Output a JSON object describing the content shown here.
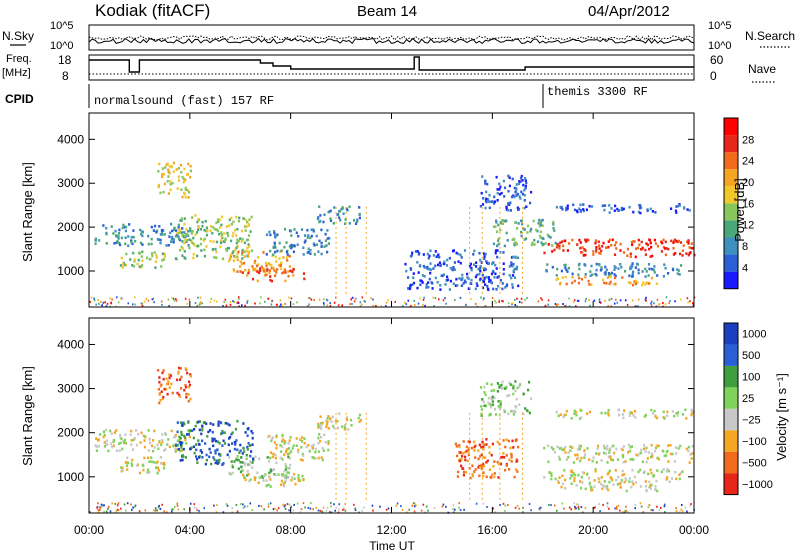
{
  "header": {
    "station": "Kodiak (fitACF)",
    "beam": "Beam 14",
    "date": "04/Apr/2012"
  },
  "side_labels": {
    "n_sky": "N.Sky",
    "freq": "Freq.",
    "freq_unit": "[MHz]",
    "cpid": "CPID",
    "n_search": "N.Search",
    "nave": "Nave"
  },
  "strip_ticks": {
    "noise_left_top": "10^5",
    "noise_left_bottom": "10^0",
    "noise_right_top": "10^5",
    "noise_right_bottom": "10^0",
    "freq_top": "18",
    "freq_bottom": "8",
    "nave_top": "60",
    "nave_bottom": "0"
  },
  "cpid_programs": [
    {
      "label": "normalsound (fast) 157 RF",
      "start_hour": 0
    },
    {
      "label": "themis 3300 RF",
      "start_hour": 18
    }
  ],
  "colors": {
    "power": [
      "#1a1aff",
      "#2a5fd6",
      "#3f8fbf",
      "#4aa77a",
      "#86c65a",
      "#f2c72a",
      "#f5a623",
      "#f26b1d",
      "#e8261a",
      "#ff0000"
    ],
    "velocity": [
      "#e8261a",
      "#f26b1d",
      "#f5a623",
      "#c8c8c8",
      "#7fd35a",
      "#3f9f3f",
      "#2a5fd6",
      "#1a3fbf"
    ],
    "line": "#000000"
  },
  "chart_data": [
    {
      "type": "heatmap",
      "title": "Power",
      "xlabel": "Time UT",
      "ylabel": "Slant Range [km]",
      "x_range_hours": [
        0,
        24
      ],
      "ylim": [
        180,
        4600
      ],
      "y_ticks": [
        "1000",
        "2000",
        "3000",
        "4000"
      ],
      "x_ticks": [
        "00:00",
        "04:00",
        "08:00",
        "12:00",
        "16:00",
        "20:00",
        "00:00"
      ],
      "colorbar": {
        "label": "Power [dB]",
        "range": [
          0,
          32
        ],
        "ticks": [
          "4",
          "8",
          "12",
          "16",
          "20",
          "24",
          "28"
        ]
      },
      "scatter_regions": [
        {
          "t": [
            0.2,
            4.0
          ],
          "r": [
            1600,
            2100
          ],
          "level": 2
        },
        {
          "t": [
            1.2,
            3.0
          ],
          "r": [
            1100,
            1500
          ],
          "level": 4
        },
        {
          "t": [
            2.7,
            4.0
          ],
          "r": [
            2700,
            3500
          ],
          "level": 5
        },
        {
          "t": [
            3.4,
            6.5
          ],
          "r": [
            1300,
            2300
          ],
          "level": 4
        },
        {
          "t": [
            5.5,
            8.0
          ],
          "r": [
            1000,
            1500
          ],
          "level": 6
        },
        {
          "t": [
            6.0,
            8.5
          ],
          "r": [
            800,
            1100
          ],
          "level": 7
        },
        {
          "t": [
            7.0,
            9.5
          ],
          "r": [
            1400,
            2000
          ],
          "level": 2
        },
        {
          "t": [
            9.0,
            10.8
          ],
          "r": [
            2100,
            2500
          ],
          "level": 2
        },
        {
          "t": [
            15.5,
            17.5
          ],
          "r": [
            2400,
            3200
          ],
          "level": 1
        },
        {
          "t": [
            16.0,
            18.5
          ],
          "r": [
            1600,
            2200
          ],
          "level": 3
        },
        {
          "t": [
            18.0,
            24.0
          ],
          "r": [
            1350,
            1750
          ],
          "level": 8
        },
        {
          "t": [
            18.0,
            23.5
          ],
          "r": [
            900,
            1200
          ],
          "level": 2
        },
        {
          "t": [
            18.5,
            22.5
          ],
          "r": [
            700,
            900
          ],
          "level": 6
        },
        {
          "t": [
            18.5,
            24.0
          ],
          "r": [
            2350,
            2550
          ],
          "level": 1
        },
        {
          "t": [
            12.5,
            17.0
          ],
          "r": [
            600,
            1500
          ],
          "level": 1
        }
      ]
    },
    {
      "type": "heatmap",
      "title": "Velocity",
      "xlabel": "Time UT",
      "ylabel": "Slant Range [km]",
      "x_range_hours": [
        0,
        24
      ],
      "ylim": [
        180,
        4600
      ],
      "y_ticks": [
        "1000",
        "2000",
        "3000",
        "4000"
      ],
      "x_ticks": [
        "00:00",
        "04:00",
        "08:00",
        "12:00",
        "16:00",
        "20:00",
        "00:00"
      ],
      "colorbar": {
        "label": "Velocity [m s⁻¹]",
        "range": [
          -1000,
          1000
        ],
        "ticks": [
          "1000",
          "500",
          "100",
          "25",
          "−25",
          "−100",
          "−500",
          "−1000"
        ]
      },
      "scatter_regions": [
        {
          "t": [
            0.2,
            4.0
          ],
          "r": [
            1600,
            2100
          ],
          "level": 3
        },
        {
          "t": [
            1.2,
            3.0
          ],
          "r": [
            1100,
            1500
          ],
          "level": 3
        },
        {
          "t": [
            2.7,
            4.0
          ],
          "r": [
            2700,
            3500
          ],
          "level": 1
        },
        {
          "t": [
            3.4,
            6.5
          ],
          "r": [
            1300,
            2300
          ],
          "level": 6
        },
        {
          "t": [
            5.5,
            8.0
          ],
          "r": [
            1000,
            1500
          ],
          "level": 4
        },
        {
          "t": [
            6.0,
            8.5
          ],
          "r": [
            800,
            1100
          ],
          "level": 3
        },
        {
          "t": [
            7.0,
            9.5
          ],
          "r": [
            1400,
            2000
          ],
          "level": 3
        },
        {
          "t": [
            9.0,
            10.8
          ],
          "r": [
            2100,
            2500
          ],
          "level": 3
        },
        {
          "t": [
            15.5,
            17.5
          ],
          "r": [
            2400,
            3200
          ],
          "level": 4
        },
        {
          "t": [
            14.5,
            17.0
          ],
          "r": [
            1000,
            1900
          ],
          "level": 1
        },
        {
          "t": [
            18.0,
            24.0
          ],
          "r": [
            1350,
            1750
          ],
          "level": 3
        },
        {
          "t": [
            18.0,
            23.5
          ],
          "r": [
            900,
            1200
          ],
          "level": 3
        },
        {
          "t": [
            18.5,
            22.5
          ],
          "r": [
            700,
            900
          ],
          "level": 3
        },
        {
          "t": [
            18.5,
            24.0
          ],
          "r": [
            2350,
            2550
          ],
          "level": 3
        }
      ]
    }
  ]
}
